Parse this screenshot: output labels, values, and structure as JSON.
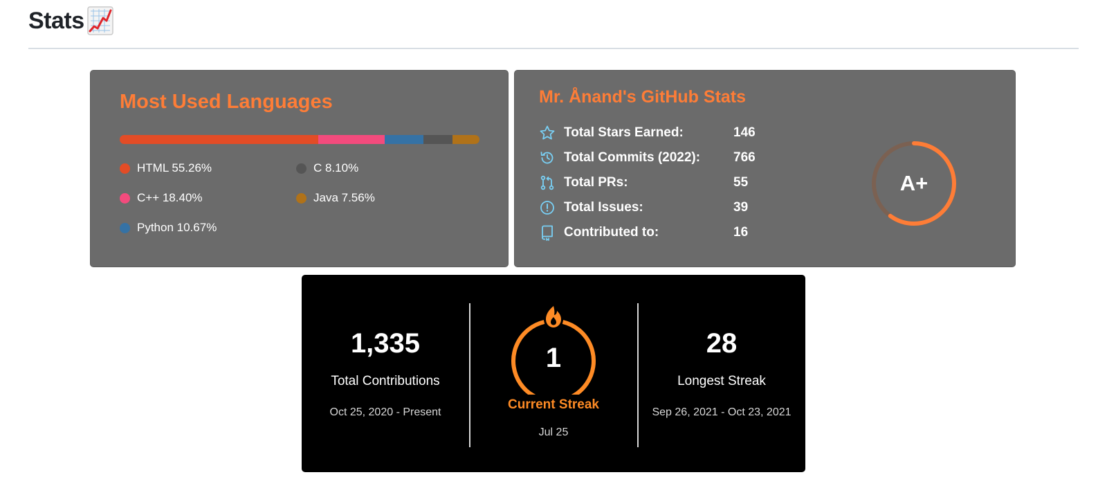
{
  "header": {
    "title": "Stats",
    "emoji": "chart-increasing-icon"
  },
  "languages_card": {
    "title": "Most Used Languages",
    "languages": [
      {
        "name": "HTML",
        "percent": 55.26,
        "label": "HTML 55.26%",
        "color": "#e34c26"
      },
      {
        "name": "C++",
        "percent": 18.4,
        "label": "C++ 18.40%",
        "color": "#f34b7d"
      },
      {
        "name": "Python",
        "percent": 10.67,
        "label": "Python 10.67%",
        "color": "#3572a5"
      },
      {
        "name": "C",
        "percent": 8.1,
        "label": "C 8.10%",
        "color": "#555555"
      },
      {
        "name": "Java",
        "percent": 7.56,
        "label": "Java 7.56%",
        "color": "#b07219"
      }
    ]
  },
  "stats_card": {
    "title": "Mr. Ånand's GitHub Stats",
    "rows": [
      {
        "icon": "star-icon",
        "label": "Total Stars Earned:",
        "value": "146"
      },
      {
        "icon": "history-icon",
        "label": "Total Commits (2022):",
        "value": "766"
      },
      {
        "icon": "pull-request-icon",
        "label": "Total PRs:",
        "value": "55"
      },
      {
        "icon": "issue-icon",
        "label": "Total Issues:",
        "value": "39"
      },
      {
        "icon": "repo-icon",
        "label": "Contributed to:",
        "value": "16"
      }
    ],
    "rank": "A+",
    "rank_progress": 0.6,
    "accent_color": "#fe7d37",
    "icon_color": "#79d0f5"
  },
  "streak_card": {
    "total_contributions": {
      "value": "1,335",
      "label": "Total Contributions",
      "range": "Oct 25, 2020 - Present"
    },
    "current_streak": {
      "value": "1",
      "label": "Current Streak",
      "range": "Jul 25"
    },
    "longest_streak": {
      "value": "28",
      "label": "Longest Streak",
      "range": "Sep 26, 2021 - Oct 23, 2021"
    },
    "ring_color": "#fe8b25"
  }
}
